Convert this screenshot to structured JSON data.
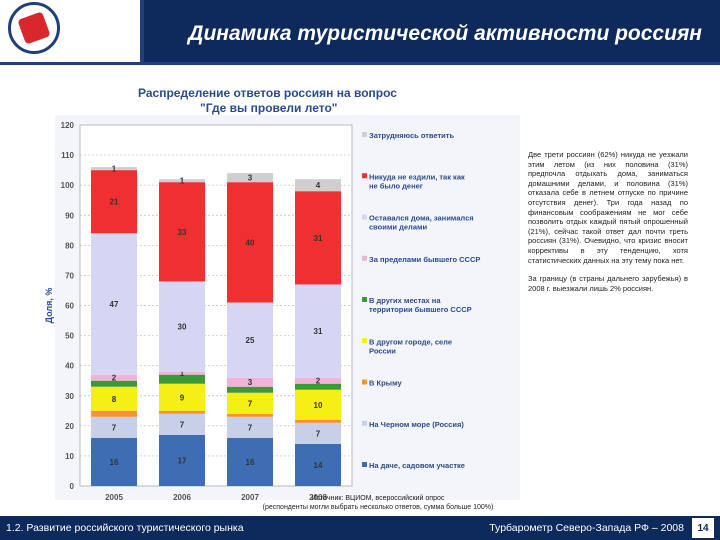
{
  "header": {
    "title": "Динамика туристической активности россиян"
  },
  "chart_data": {
    "type": "bar",
    "stacked": true,
    "title": "Распределение ответов россиян на вопрос",
    "subtitle": "\"Где вы провели лето\"",
    "xlabel": "",
    "ylabel": "Доля, %",
    "ylim": [
      0,
      120
    ],
    "yticks": [
      0,
      10,
      20,
      30,
      40,
      50,
      60,
      70,
      80,
      90,
      100,
      110,
      120
    ],
    "grid": true,
    "legend_position": "right",
    "categories": [
      "2005",
      "2006",
      "2007",
      "2008"
    ],
    "series": [
      {
        "name": "На даче, садовом участке",
        "color": "#3f6db4",
        "values": [
          16,
          17,
          16,
          14
        ],
        "labels": [
          "16",
          "17",
          "16",
          "14"
        ]
      },
      {
        "name": "На Черном море (Россия)",
        "color": "#c7d0e6",
        "values": [
          7,
          7,
          7,
          7
        ],
        "labels": [
          "7",
          "7",
          "7",
          "7"
        ]
      },
      {
        "name": "В Крыму",
        "color": "#f7923a",
        "values": [
          2,
          1,
          1,
          1
        ],
        "labels": [
          "",
          "",
          "",
          ""
        ]
      },
      {
        "name": "В другом городе, селе России",
        "color": "#f5ef16",
        "values": [
          8,
          9,
          7,
          10
        ],
        "labels": [
          "8",
          "9",
          "7",
          "10"
        ]
      },
      {
        "name": "В других местах на территории бывшего СССР",
        "color": "#3a9a3a",
        "values": [
          2,
          3,
          2,
          2
        ],
        "labels": [
          "",
          "",
          "",
          ""
        ]
      },
      {
        "name": "За пределами бывшего СССР",
        "color": "#f2b2d5",
        "values": [
          2,
          1,
          3,
          2
        ],
        "labels": [
          "2",
          "1",
          "3",
          "2"
        ]
      },
      {
        "name": "Оставался дома, занимался своими делами",
        "color": "#d6d6f4",
        "values": [
          47,
          30,
          25,
          31
        ],
        "labels": [
          "47",
          "30",
          "25",
          "31"
        ]
      },
      {
        "name": "Никуда не ездили, так как не было денег",
        "color": "#f03030",
        "values": [
          21,
          33,
          40,
          31
        ],
        "labels": [
          "21",
          "33",
          "40",
          "31"
        ]
      },
      {
        "name": "Затрудняюсь ответить",
        "color": "#cfcfcf",
        "values": [
          1,
          1,
          3,
          4
        ],
        "labels": [
          "1",
          "1",
          "3",
          "4"
        ]
      }
    ]
  },
  "side_text": {
    "paragraph1": "Две трети россиян (62%) никуда не уезжали этим летом (из них половина (31%) предпочла отдыхать дома, заниматься домашними делами, и половина (31%) отказала себе в летнем отпуске по причине отсутствия денег). Три года назад по финансовым соображениям не мог себе позволить отдых каждый пятый опрошенный (21%), сейчас такой ответ дал почти треть россиян (31%). Очевидно, что кризис вносит коррективы в эту тенденцию, хотя статистических данных на эту тему пока нет.",
    "paragraph2": "За границу (в страны дальнего зарубежья) в 2008 г. выезжали лишь 2% россиян."
  },
  "source": {
    "line1": "Источник: ВЦИОМ, всероссийский опрос",
    "line2": "(респонденты могли выбрать несколько ответов, сумма больше 100%)"
  },
  "footer": {
    "left": "1.2. Развитие российского туристического рынка",
    "right": "Турбарометр Северо-Запада РФ – 2008",
    "page": "14"
  }
}
